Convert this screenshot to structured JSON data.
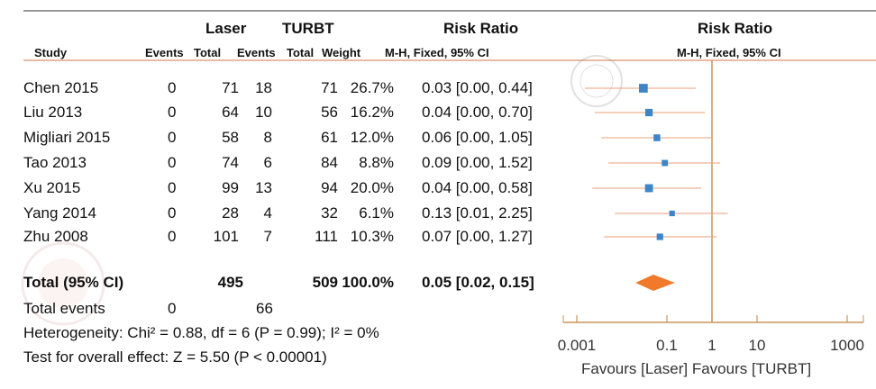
{
  "chart_data": {
    "type": "forest",
    "headers": {
      "group1": "Laser",
      "group2": "TURBT",
      "rr_left": "Risk Ratio",
      "rr_right": "Risk Ratio",
      "study": "Study",
      "events": "Events",
      "total": "Total",
      "weight": "Weight",
      "method_left": "M-H, Fixed, 95% CI",
      "method_right": "M-H, Fixed, 95% CI"
    },
    "studies": [
      {
        "name": "Chen 2015",
        "e1": "0",
        "n1": "71",
        "e2": "18",
        "n2": "71",
        "weight": "26.7%",
        "ci_text": "0.03 [0.00, 0.44]",
        "rr": 0.03,
        "lo": 0.0015,
        "hi": 0.44,
        "w": 26.7
      },
      {
        "name": "Liu 2013",
        "e1": "0",
        "n1": "64",
        "e2": "10",
        "n2": "56",
        "weight": "16.2%",
        "ci_text": "0.04 [0.00, 0.70]",
        "rr": 0.04,
        "lo": 0.0025,
        "hi": 0.7,
        "w": 16.2
      },
      {
        "name": "Migliari 2015",
        "e1": "0",
        "n1": "58",
        "e2": "8",
        "n2": "61",
        "weight": "12.0%",
        "ci_text": "0.06 [0.00, 1.05]",
        "rr": 0.06,
        "lo": 0.0035,
        "hi": 1.05,
        "w": 12.0
      },
      {
        "name": "Tao 2013",
        "e1": "0",
        "n1": "74",
        "e2": "6",
        "n2": "84",
        "weight": "8.8%",
        "ci_text": "0.09 [0.00, 1.52]",
        "rr": 0.09,
        "lo": 0.005,
        "hi": 1.52,
        "w": 8.8
      },
      {
        "name": "Xu 2015",
        "e1": "0",
        "n1": "99",
        "e2": "13",
        "n2": "94",
        "weight": "20.0%",
        "ci_text": "0.04 [0.00, 0.58]",
        "rr": 0.04,
        "lo": 0.0022,
        "hi": 0.58,
        "w": 20.0
      },
      {
        "name": "Yang 2014",
        "e1": "0",
        "n1": "28",
        "e2": "4",
        "n2": "32",
        "weight": "6.1%",
        "ci_text": "0.13 [0.01, 2.25]",
        "rr": 0.13,
        "lo": 0.007,
        "hi": 2.25,
        "w": 6.1
      },
      {
        "name": "Zhu 2008",
        "e1": "0",
        "n1": "101",
        "e2": "7",
        "n2": "111",
        "weight": "10.3%",
        "ci_text": "0.07 [0.00, 1.27]",
        "rr": 0.07,
        "lo": 0.004,
        "hi": 1.27,
        "w": 10.3
      }
    ],
    "total": {
      "label": "Total (95% CI)",
      "n1": "495",
      "n2": "509",
      "weight": "100.0%",
      "ci_text": "0.05 [0.02, 0.15]",
      "rr": 0.05,
      "lo": 0.02,
      "hi": 0.15
    },
    "total_events": {
      "label": "Total events",
      "e1": "0",
      "e2": "66"
    },
    "heterogeneity": "Heterogeneity: Chi² = 0.88, df = 6 (P = 0.99); I² = 0%",
    "overall_test": "Test for overall effect: Z = 5.50 (P < 0.00001)",
    "x_axis": {
      "scale": "log",
      "range": [
        0.001,
        1000
      ],
      "ticks": [
        {
          "v": 0.001,
          "label": "0.001"
        },
        {
          "v": 0.1,
          "label": "0.1"
        },
        {
          "v": 1,
          "label": "1"
        },
        {
          "v": 10,
          "label": "10"
        },
        {
          "v": 1000,
          "label": "1000"
        }
      ]
    },
    "favours": "Favours [Laser]  Favours [TURBT]",
    "watermark": "中華醫學會",
    "colors": {
      "square": "#3d85c6",
      "diamond": "#f07a2a",
      "lines": "#e9a27a",
      "axis": "#c9965a"
    }
  }
}
